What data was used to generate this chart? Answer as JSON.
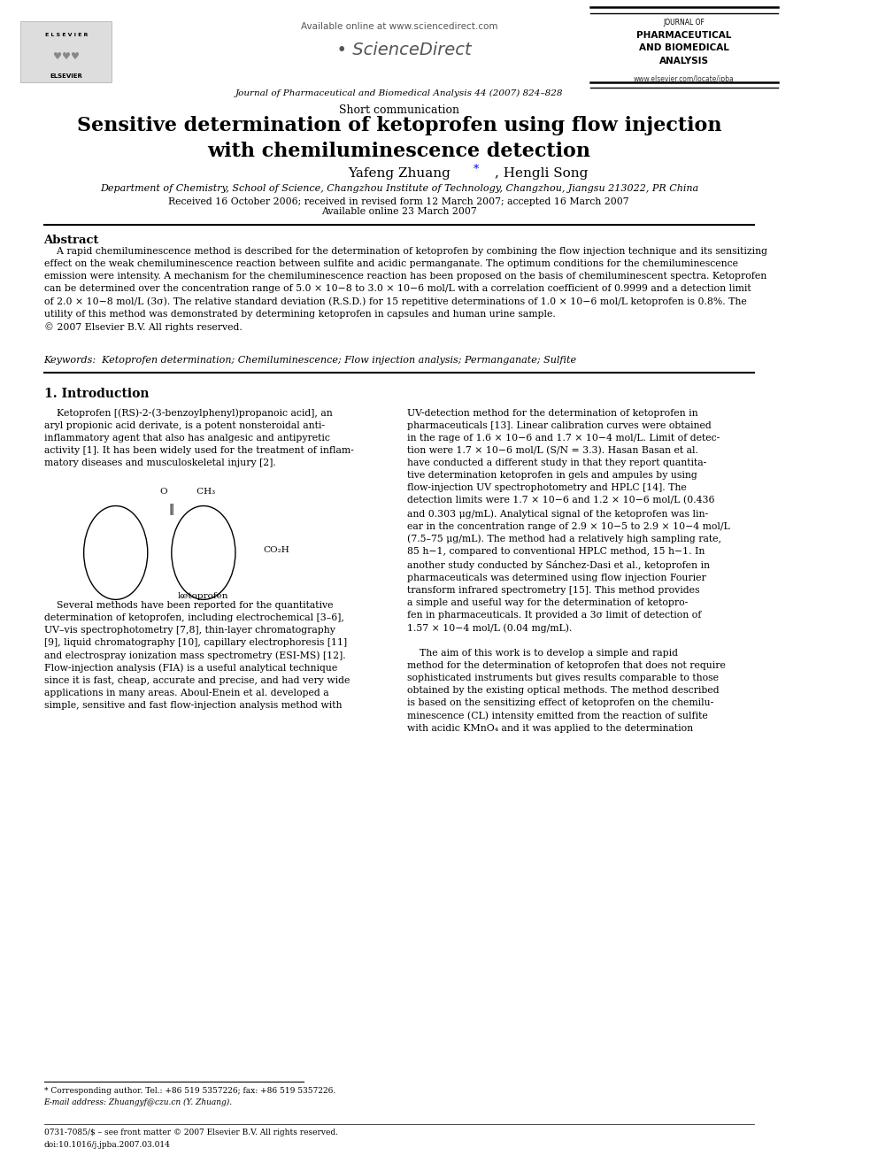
{
  "bg_color": "#ffffff",
  "page_width": 9.92,
  "page_height": 13.23,
  "header": {
    "available_online": "Available online at www.sciencedirect.com",
    "journal_name_line1": "JOURNAL OF",
    "journal_name_line2": "PHARMACEUTICAL",
    "journal_name_line3": "AND BIOMEDICAL",
    "journal_name_line4": "ANALYSIS",
    "journal_issue": "Journal of Pharmaceutical and Biomedical Analysis 44 (2007) 824–828",
    "website": "www.elsevier.com/locate/jpba",
    "elsevier_label": "ELSEVIER"
  },
  "article_type": "Short communication",
  "title": "Sensitive determination of ketoprofen using flow injection\nwith chemiluminescence detection",
  "authors": "Yafeng Zhuang *, Hengli Song",
  "affiliation": "Department of Chemistry, School of Science, Changzhou Institute of Technology, Changzhou, Jiangsu 213022, PR China",
  "received": "Received 16 October 2006; received in revised form 12 March 2007; accepted 16 March 2007",
  "available": "Available online 23 March 2007",
  "abstract_title": "Abstract",
  "keywords": "Keywords:  Ketoprofen determination; Chemiluminescence; Flow injection analysis; Permanganate; Sulfite",
  "section1_title": "1. Introduction",
  "footnote_corresponding": "* Corresponding author. Tel.: +86 519 5357226; fax: +86 519 5357226.",
  "footnote_email": "E-mail address: Zhuangyf@czu.cn (Y. Zhuang).",
  "footnote_issn": "0731-7085/$ – see front matter © 2007 Elsevier B.V. All rights reserved.",
  "footnote_doi": "doi:10.1016/j.jpba.2007.03.014"
}
